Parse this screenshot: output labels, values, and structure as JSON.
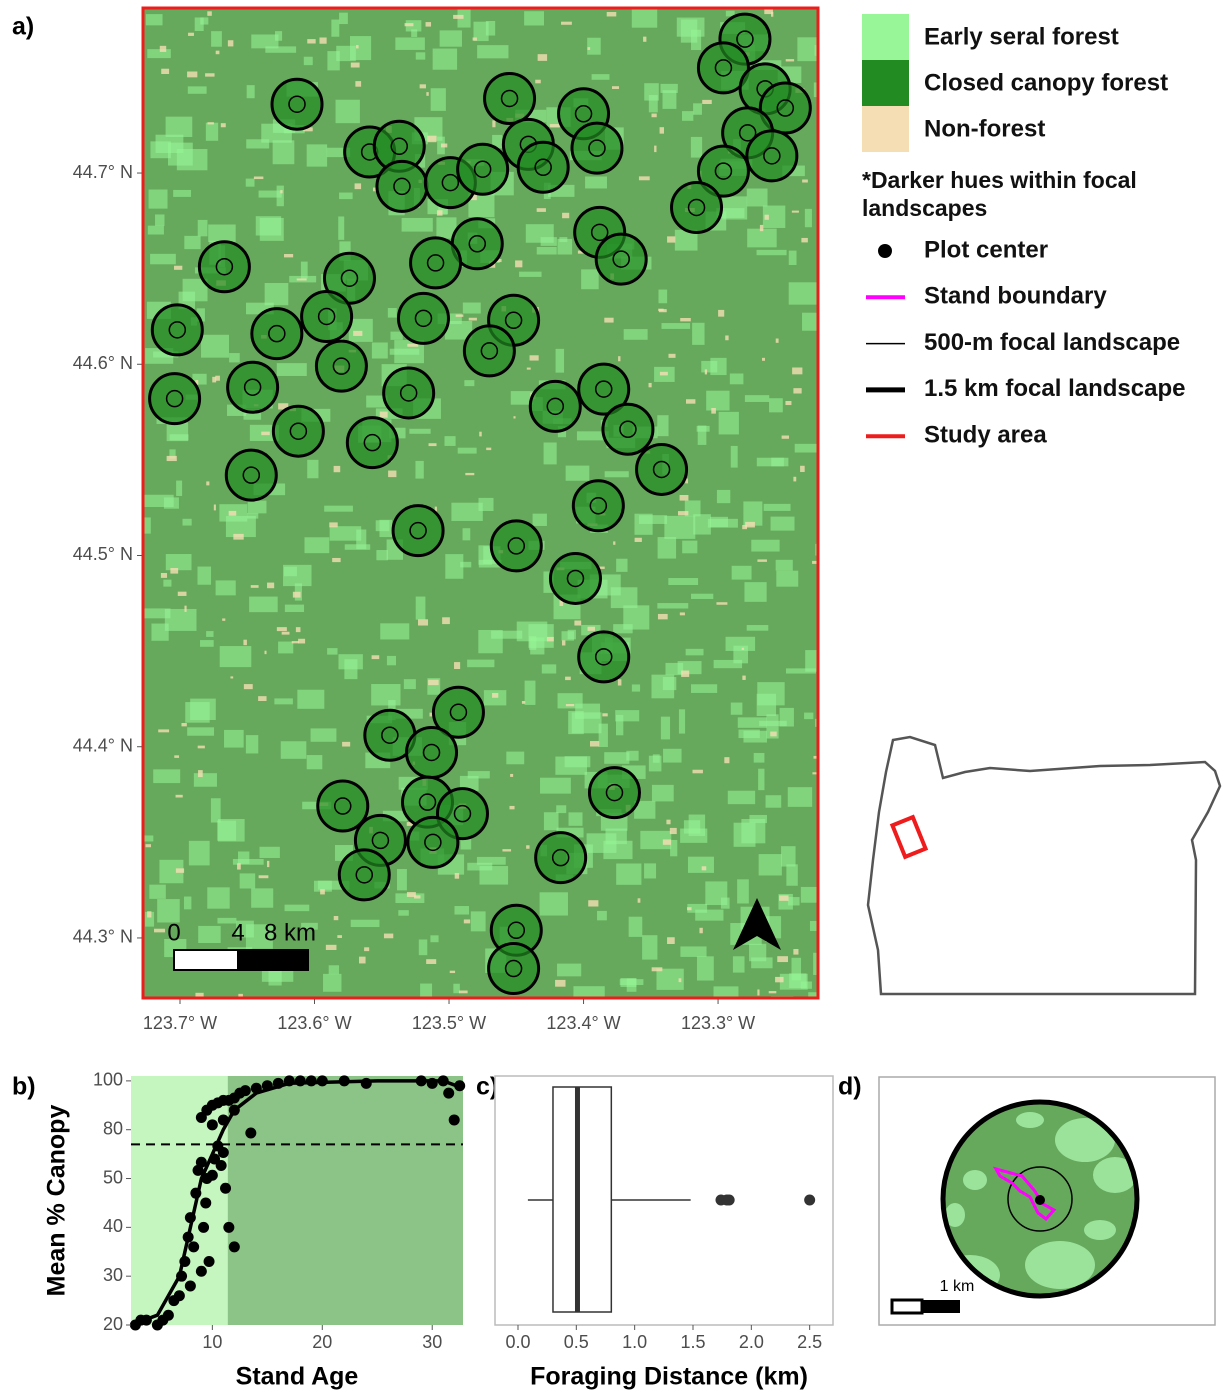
{
  "chart_data": [
    {
      "type": "map",
      "label": "a)",
      "xlim": [
        -123.7275,
        -123.2257
      ],
      "ylim": [
        44.2686,
        44.7863
      ],
      "xticks": [
        {
          "value": -123.7,
          "label": "123.7° W"
        },
        {
          "value": -123.6,
          "label": "123.6° W"
        },
        {
          "value": -123.5,
          "label": "123.5° W"
        },
        {
          "value": -123.4,
          "label": "123.4° W"
        },
        {
          "value": -123.3,
          "label": "123.3° W"
        }
      ],
      "yticks": [
        {
          "value": 44.3,
          "label": "44.3° N"
        },
        {
          "value": 44.4,
          "label": "44.4° N"
        },
        {
          "value": 44.5,
          "label": "44.5° N"
        },
        {
          "value": 44.6,
          "label": "44.6° N"
        },
        {
          "value": 44.7,
          "label": "44.7° N"
        }
      ],
      "x": [
        -123.28,
        -123.296,
        -123.265,
        -123.25,
        -123.613,
        -123.455,
        -123.4,
        -123.278,
        -123.26,
        -123.559,
        -123.537,
        -123.441,
        -123.39,
        -123.535,
        -123.499,
        -123.475,
        -123.43,
        -123.296,
        -123.316,
        -123.388,
        -123.479,
        -123.667,
        -123.51,
        -123.574,
        -123.372,
        -123.702,
        -123.628,
        -123.591,
        -123.519,
        -123.452,
        -123.47,
        -123.58,
        -123.646,
        -123.53,
        -123.385,
        -123.704,
        -123.421,
        -123.612,
        -123.557,
        -123.367,
        -123.342,
        -123.647,
        -123.389,
        -123.523,
        -123.45,
        -123.406,
        -123.385,
        -123.544,
        -123.493,
        -123.513,
        -123.377,
        -123.579,
        -123.516,
        -123.49,
        -123.551,
        -123.512,
        -123.417,
        -123.563,
        -123.45,
        -123.452
      ],
      "values": [
        44.77,
        44.755,
        44.744,
        44.734,
        44.736,
        44.739,
        44.731,
        44.721,
        44.709,
        44.711,
        44.714,
        44.715,
        44.713,
        44.693,
        44.695,
        44.702,
        44.703,
        44.701,
        44.682,
        44.669,
        44.663,
        44.651,
        44.653,
        44.645,
        44.655,
        44.618,
        44.616,
        44.625,
        44.624,
        44.623,
        44.607,
        44.599,
        44.588,
        44.585,
        44.587,
        44.582,
        44.578,
        44.565,
        44.559,
        44.566,
        44.545,
        44.542,
        44.526,
        44.513,
        44.505,
        44.488,
        44.447,
        44.406,
        44.418,
        44.397,
        44.376,
        44.369,
        44.371,
        44.365,
        44.351,
        44.35,
        44.342,
        44.333,
        44.304,
        44.284
      ],
      "scale_bar_labels": [
        "0",
        "4",
        "8 km"
      ],
      "legend_fills": [
        {
          "label": "Early seral forest",
          "color": "#98f598"
        },
        {
          "label": "Closed canopy forest",
          "color": "#228b22"
        },
        {
          "label": "Non-forest",
          "color": "#f5deb3"
        }
      ],
      "legend_note": "*Darker hues within focal landscapes",
      "legend_lines": [
        {
          "label": "Plot center",
          "color": "#000000"
        },
        {
          "label": "Stand boundary",
          "color": "#ff00ff"
        },
        {
          "label": "500-m focal landscape",
          "color": "#000000"
        },
        {
          "label": "1.5 km focal landscape",
          "color": "#000000"
        },
        {
          "label": "Study area",
          "color": "#ee1c1c"
        }
      ]
    },
    {
      "type": "scatter",
      "label": "b)",
      "xlabel": "Stand Age",
      "ylabel": "Mean % Canopy",
      "xlim": [
        2.6,
        32.8
      ],
      "ylim": [
        20,
        102
      ],
      "xticks": [
        10,
        20,
        30
      ],
      "yticks": [
        20,
        30,
        40,
        50,
        80,
        100
      ],
      "yscale": "even-ticks",
      "threshold": 71,
      "threshold_age": 11.4,
      "x": [
        3,
        3.5,
        4,
        5,
        5.5,
        6,
        6.5,
        7,
        7.2,
        7.5,
        7.8,
        8,
        8,
        8.3,
        8.5,
        8.7,
        9,
        9,
        9.2,
        9.4,
        9.5,
        9.7,
        10,
        10.2,
        10.5,
        10.8,
        11,
        11.2,
        11.5,
        12,
        9,
        9.5,
        10,
        10.5,
        11,
        11.5,
        12,
        12.5,
        13,
        13.5,
        14,
        15,
        16,
        17,
        18,
        19,
        20,
        22,
        24,
        29,
        30,
        31,
        31.5,
        32,
        32.5,
        10,
        11,
        12
      ],
      "values": [
        20,
        21,
        21,
        20,
        21,
        22,
        25,
        26,
        30,
        33,
        38,
        42,
        28,
        36,
        47,
        55,
        31,
        60,
        40,
        45,
        50,
        33,
        52,
        62,
        70,
        58,
        66,
        48,
        40,
        36,
        85,
        88,
        90,
        91,
        92,
        92,
        93,
        95,
        96,
        78,
        97,
        98,
        99,
        100,
        100,
        100,
        100,
        100,
        99,
        100,
        99,
        100,
        95,
        84,
        98,
        82,
        84,
        88
      ],
      "fit": {
        "x": [
          2.6,
          5,
          7,
          8,
          9,
          10,
          11,
          12,
          14,
          17,
          25,
          31,
          32.8
        ],
        "values": [
          20,
          22,
          30,
          40,
          50,
          65,
          80,
          88,
          95,
          99,
          100,
          100,
          97
        ]
      }
    },
    {
      "type": "box",
      "label": "c)",
      "xlabel": "Foraging Distance (km)",
      "xlim": [
        -0.197,
        2.7
      ],
      "xticks": [
        {
          "value": 0,
          "label": "0.0"
        },
        {
          "value": 0.5,
          "label": "0.5"
        },
        {
          "value": 1,
          "label": "1.0"
        },
        {
          "value": 1.5,
          "label": "1.5"
        },
        {
          "value": 2,
          "label": "2.0"
        },
        {
          "value": 2.5,
          "label": "2.5"
        }
      ],
      "whisker_low": 0.085,
      "q1": 0.3,
      "median": 0.51,
      "q3": 0.8,
      "whisker_high": 1.48,
      "outliers": [
        1.74,
        1.79,
        1.81,
        2.5
      ]
    },
    {
      "type": "inset",
      "label": "d)",
      "scale_label": "1 km"
    }
  ]
}
